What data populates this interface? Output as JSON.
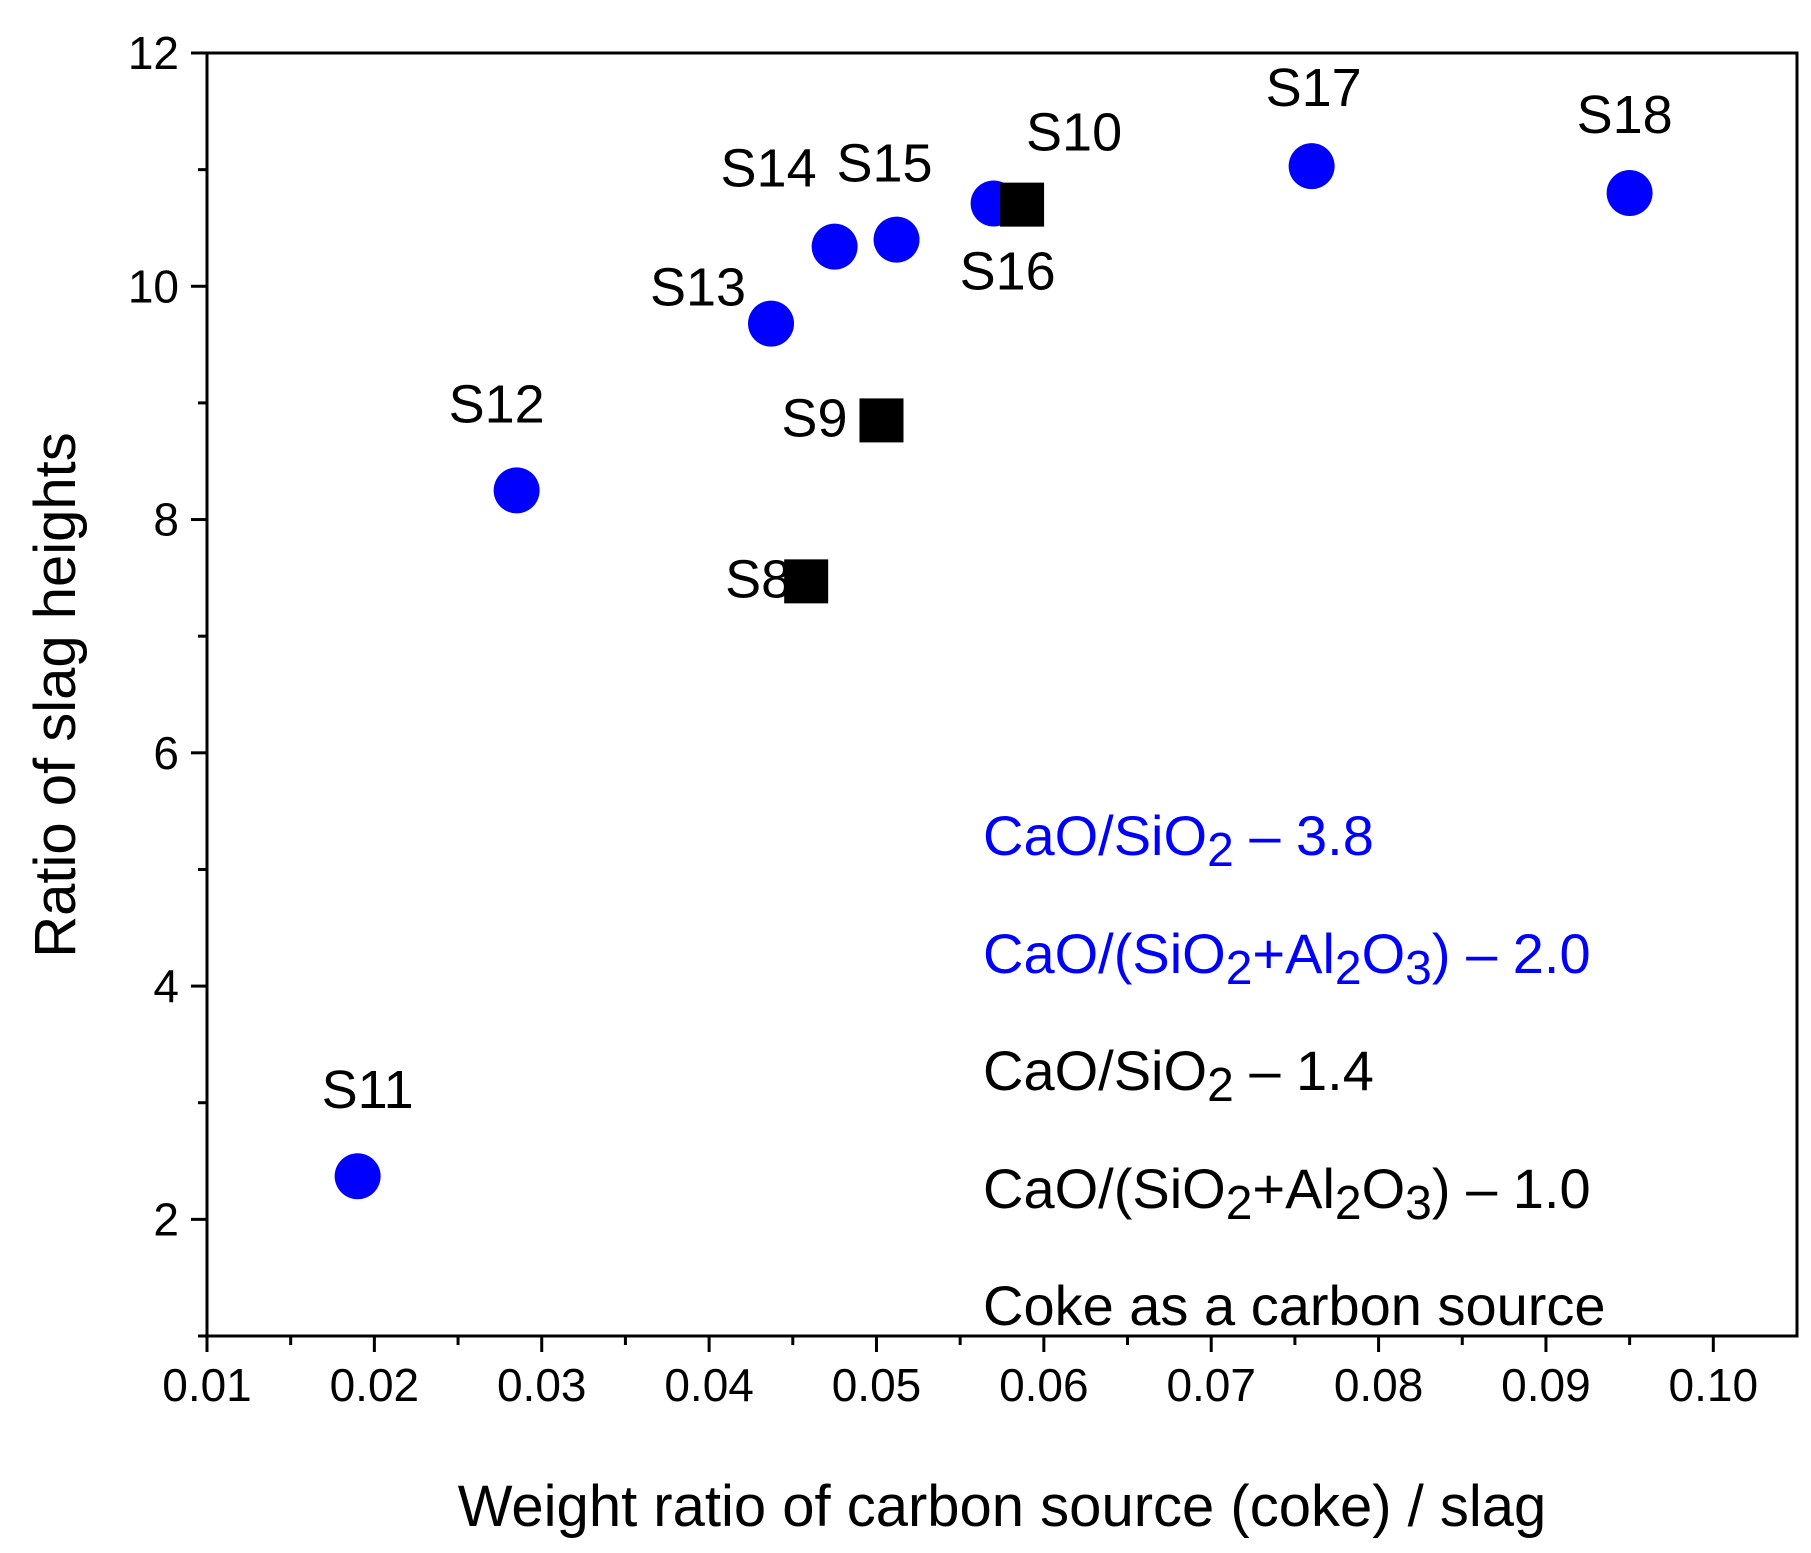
{
  "chart_data": {
    "type": "scatter",
    "title": "",
    "xlabel": "Weight ratio of carbon source (coke) / slag",
    "ylabel": "Ratio of slag heights",
    "xlim": [
      0.01,
      0.105
    ],
    "ylim": [
      1,
      12
    ],
    "xticks": [
      0.01,
      0.02,
      0.03,
      0.04,
      0.05,
      0.06,
      0.07,
      0.08,
      0.09,
      0.1
    ],
    "xtick_labels": [
      "0.01",
      "0.02",
      "0.03",
      "0.04",
      "0.05",
      "0.06",
      "0.07",
      "0.08",
      "0.09",
      "0.10"
    ],
    "yticks": [
      2,
      4,
      6,
      8,
      10,
      12
    ],
    "ytick_labels": [
      "2",
      "4",
      "6",
      "8",
      "10",
      "12"
    ],
    "grid": false,
    "series": [
      {
        "name": "CaO/SiO2 - 3.8",
        "marker": "circle",
        "color": "#0000ff",
        "points": [
          {
            "label": "S11",
            "x": 0.019,
            "y": 2.37
          },
          {
            "label": "S12",
            "x": 0.0285,
            "y": 8.25
          },
          {
            "label": "S13",
            "x": 0.0437,
            "y": 9.68
          },
          {
            "label": "S14",
            "x": 0.0475,
            "y": 10.34
          },
          {
            "label": "S15",
            "x": 0.0512,
            "y": 10.4
          },
          {
            "label": "S16",
            "x": 0.057,
            "y": 10.71
          },
          {
            "label": "S17",
            "x": 0.076,
            "y": 11.03
          },
          {
            "label": "S18",
            "x": 0.095,
            "y": 10.8
          }
        ]
      },
      {
        "name": "CaO/SiO2 - 1.4",
        "marker": "square",
        "color": "#000000",
        "points": [
          {
            "label": "S8",
            "x": 0.0458,
            "y": 7.47
          },
          {
            "label": "S9",
            "x": 0.0503,
            "y": 8.85
          },
          {
            "label": "S10",
            "x": 0.0587,
            "y": 10.7
          }
        ]
      }
    ],
    "annotations": [
      {
        "color": "#0000ff",
        "parts": [
          {
            "t": "CaO/SiO"
          },
          {
            "t": "2",
            "sub": true
          },
          {
            "t": " – 3.8"
          }
        ]
      },
      {
        "color": "#0000ff",
        "parts": [
          {
            "t": "CaO/(SiO"
          },
          {
            "t": "2",
            "sub": true
          },
          {
            "t": "+Al"
          },
          {
            "t": "2",
            "sub": true
          },
          {
            "t": "O"
          },
          {
            "t": "3",
            "sub": true
          },
          {
            "t": ") – 2.0"
          }
        ]
      },
      {
        "color": "#000000",
        "parts": [
          {
            "t": "CaO/SiO"
          },
          {
            "t": "2",
            "sub": true
          },
          {
            "t": " – 1.4"
          }
        ]
      },
      {
        "color": "#000000",
        "parts": [
          {
            "t": "CaO/(SiO"
          },
          {
            "t": "2",
            "sub": true
          },
          {
            "t": "+Al"
          },
          {
            "t": "2",
            "sub": true
          },
          {
            "t": "O"
          },
          {
            "t": "3",
            "sub": true
          },
          {
            "t": ") – 1.0"
          }
        ]
      },
      {
        "color": "#000000",
        "parts": [
          {
            "t": "Coke as a carbon source"
          }
        ]
      }
    ]
  }
}
